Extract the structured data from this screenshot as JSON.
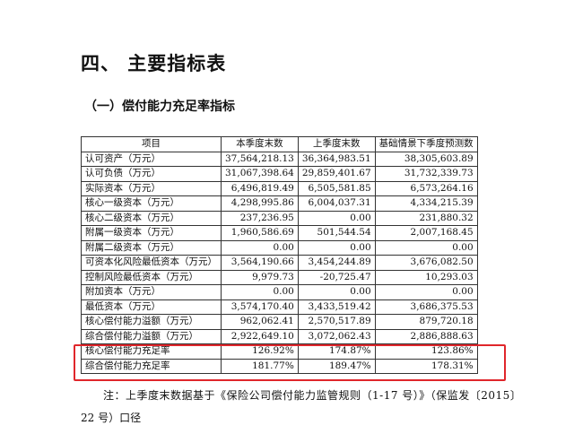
{
  "title": "四、 主要指标表",
  "subtitle": "（一）偿付能力充足率指标",
  "table": {
    "headers": [
      "项目",
      "本季度末数",
      "上季度末数",
      "基础情景下季度预测数"
    ],
    "rows": [
      [
        "认可资产（万元）",
        "37,564,218.13",
        "36,364,983.51",
        "38,305,603.89"
      ],
      [
        "认可负债（万元）",
        "31,067,398.64",
        "29,859,401.67",
        "31,732,339.73"
      ],
      [
        "实际资本（万元）",
        "6,496,819.49",
        "6,505,581.85",
        "6,573,264.16"
      ],
      [
        "核心一级资本（万元）",
        "4,298,995.86",
        "6,004,037.31",
        "4,334,215.39"
      ],
      [
        "核心二级资本（万元）",
        "237,236.95",
        "0.00",
        "231,880.32"
      ],
      [
        "附属一级资本（万元）",
        "1,960,586.69",
        "501,544.54",
        "2,007,168.45"
      ],
      [
        "附属二级资本（万元）",
        "0.00",
        "0.00",
        "0.00"
      ],
      [
        "可资本化风险最低资本（万元）",
        "3,564,190.66",
        "3,454,244.89",
        "3,676,082.50"
      ],
      [
        "控制风险最低资本（万元）",
        "9,979.73",
        "-20,725.47",
        "10,293.03"
      ],
      [
        "附加资本（万元）",
        "0.00",
        "0.00",
        "0.00"
      ],
      [
        "最低资本（万元）",
        "3,574,170.40",
        "3,433,519.42",
        "3,686,375.53"
      ],
      [
        "核心偿付能力溢额（万元）",
        "962,062.41",
        "2,570,517.89",
        "879,720.18"
      ],
      [
        "综合偿付能力溢额（万元）",
        "2,922,649.10",
        "3,072,062.43",
        "2,886,888.63"
      ],
      [
        "核心偿付能力充足率",
        "126.92%",
        "174.87%",
        "123.86%"
      ],
      [
        "综合偿付能力充足率",
        "181.77%",
        "189.47%",
        "178.31%"
      ]
    ]
  },
  "highlight_color": "#e0262b",
  "note_line1": "注：上季度末数据基于《保险公司偿付能力监管规则（1-17 号）》（保监发〔2015〕",
  "note_line2": "22 号）口径"
}
